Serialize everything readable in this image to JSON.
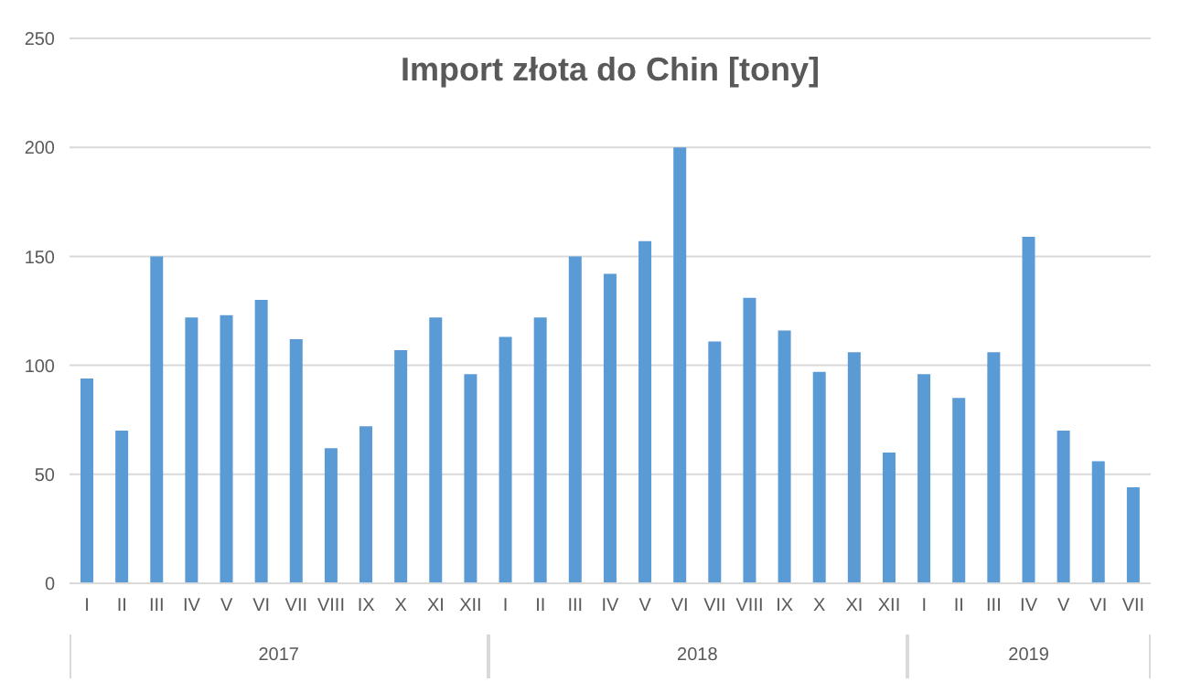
{
  "chart_data": {
    "type": "bar",
    "title": "Import złota do Chin [tony]",
    "categories": [
      "I",
      "II",
      "III",
      "IV",
      "V",
      "VI",
      "VII",
      "VIII",
      "IX",
      "X",
      "XI",
      "XII",
      "I",
      "II",
      "III",
      "IV",
      "V",
      "VI",
      "VII",
      "VIII",
      "IX",
      "X",
      "XI",
      "XII",
      "I",
      "II",
      "III",
      "IV",
      "V",
      "VI",
      "VII"
    ],
    "values": [
      94,
      70,
      150,
      122,
      123,
      130,
      112,
      62,
      72,
      107,
      122,
      96,
      113,
      122,
      150,
      142,
      157,
      200,
      111,
      131,
      116,
      97,
      106,
      60,
      96,
      85,
      106,
      159,
      70,
      56,
      44
    ],
    "color": "#5b9bd5",
    "ylim": [
      0,
      250
    ],
    "yticks": [
      0,
      50,
      100,
      150,
      200,
      250
    ],
    "grid": "y",
    "annotations": [
      "2017",
      "2018",
      "2019"
    ]
  }
}
